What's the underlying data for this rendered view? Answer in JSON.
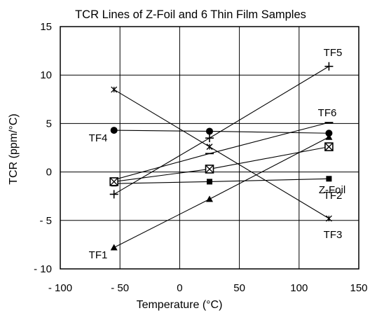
{
  "chart_data": {
    "type": "line",
    "title": "TCR Lines of Z-Foil and 6 Thin Film Samples",
    "xlabel": "Temperature (°C)",
    "ylabel": "TCR (ppm/°C)",
    "xlim": [
      -100,
      150
    ],
    "ylim": [
      -10,
      15
    ],
    "xticks": [
      -100,
      -50,
      0,
      50,
      100,
      150
    ],
    "yticks": [
      -10,
      -5,
      0,
      5,
      10,
      15
    ],
    "xtick_labels": [
      "- 100",
      "- 50",
      "0",
      "50",
      "100",
      "150"
    ],
    "ytick_labels": [
      "- 10",
      "- 5",
      "0",
      "5",
      "10",
      "15"
    ],
    "grid": true,
    "legend": "none",
    "series": [
      {
        "name": "TF1",
        "marker": "triangle",
        "x": [
          -55,
          25,
          125
        ],
        "y": [
          -7.8,
          -2.8,
          3.6
        ]
      },
      {
        "name": "TF2",
        "marker": "boxed-x",
        "x": [
          -55,
          25,
          125
        ],
        "y": [
          -1.0,
          0.3,
          2.6
        ]
      },
      {
        "name": "TF3",
        "marker": "star",
        "x": [
          -55,
          25,
          125
        ],
        "y": [
          8.5,
          2.6,
          -4.8
        ]
      },
      {
        "name": "TF4",
        "marker": "circle",
        "x": [
          -55,
          25,
          125
        ],
        "y": [
          4.3,
          4.2,
          4.0
        ]
      },
      {
        "name": "TF5",
        "marker": "plus",
        "x": [
          -55,
          25,
          125
        ],
        "y": [
          -2.3,
          3.5,
          10.9
        ]
      },
      {
        "name": "TF6",
        "marker": "dash",
        "x": [
          -55,
          25,
          125
        ],
        "y": [
          -0.8,
          1.9,
          5.1
        ]
      },
      {
        "name": "Z-Foil",
        "marker": "square",
        "x": [
          -55,
          25,
          125
        ],
        "y": [
          -1.2,
          -1.0,
          -0.7
        ]
      }
    ]
  }
}
